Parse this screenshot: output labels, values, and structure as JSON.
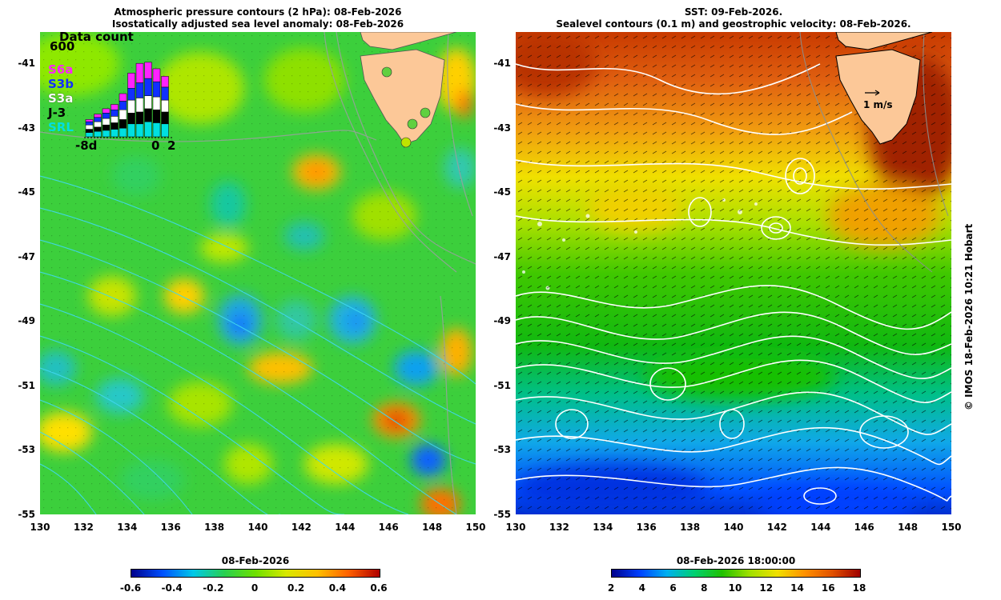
{
  "left_panel": {
    "title_line1": "Atmospheric pressure contours (2 hPa): 08-Feb-2026",
    "title_line2": "Isostatically adjusted sea level anomaly: 08-Feb-2026",
    "colorbar_title": "08-Feb-2026",
    "colorbar_ticks": [
      "-0.6",
      "-0.4",
      "-0.2",
      "0",
      "0.2",
      "0.4",
      "0.6"
    ],
    "inset": {
      "title": "Data count",
      "max_label": "600",
      "missions": [
        {
          "name": "S6a",
          "color": "#ff22ff"
        },
        {
          "name": "S3b",
          "color": "#1030ff"
        },
        {
          "name": "S3a",
          "color": "#ffffff"
        },
        {
          "name": "J-3",
          "color": "#000000"
        },
        {
          "name": "SRL",
          "color": "#00e0e0"
        }
      ],
      "x_labels": [
        "-8d",
        "0",
        "2"
      ]
    }
  },
  "right_panel": {
    "title_line1": "SST: 09-Feb-2026.",
    "title_line2": "Sealevel contours (0.1 m) and geostrophic velocity: 08-Feb-2026.",
    "colorbar_title": "08-Feb-2026 18:00:00",
    "colorbar_ticks": [
      "2",
      "4",
      "6",
      "8",
      "10",
      "12",
      "14",
      "16",
      "18"
    ],
    "velocity_scale_label": "1 m/s"
  },
  "axes": {
    "y_ticks": [
      "-41",
      "-43",
      "-45",
      "-47",
      "-49",
      "-51",
      "-53",
      "-55"
    ],
    "x_ticks": [
      "130",
      "132",
      "134",
      "136",
      "138",
      "140",
      "142",
      "144",
      "146",
      "148",
      "150"
    ]
  },
  "credit": "© IMOS 18-Feb-2026 10:21 Hobart",
  "colors": {
    "land": "#fcc898",
    "ssla_colormap": [
      "#00008b",
      "#0050ff",
      "#00c8e8",
      "#28d050",
      "#6ee000",
      "#d8e800",
      "#ffc000",
      "#ff6000",
      "#b00000"
    ],
    "sst_colormap": [
      "#00008b",
      "#0040ff",
      "#00b0f0",
      "#00d070",
      "#20c000",
      "#a0e000",
      "#f0e000",
      "#ff9000",
      "#e05000",
      "#a00000"
    ]
  }
}
